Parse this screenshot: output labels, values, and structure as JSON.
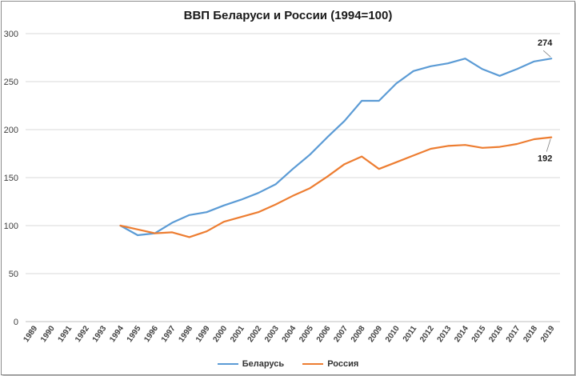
{
  "chart_data": {
    "type": "line",
    "title": "ВВП Беларуси и России (1994=100)",
    "xlabel": "",
    "ylabel": "",
    "ylim": [
      0,
      300
    ],
    "yticks": [
      0,
      50,
      100,
      150,
      200,
      250,
      300
    ],
    "grid": true,
    "legend": "bottom",
    "categories": [
      "1989",
      "1990",
      "1991",
      "1992",
      "1993",
      "1994",
      "1995",
      "1996",
      "1997",
      "1998",
      "1999",
      "2000",
      "2001",
      "2002",
      "2003",
      "2004",
      "2005",
      "2006",
      "2007",
      "2008",
      "2009",
      "2010",
      "2011",
      "2012",
      "2013",
      "2014",
      "2015",
      "2016",
      "2017",
      "2018",
      "2019"
    ],
    "series": [
      {
        "name": "Беларусь",
        "color": "#5b9bd5",
        "values": [
          null,
          null,
          null,
          null,
          null,
          100,
          90,
          92,
          103,
          111,
          114,
          121,
          127,
          134,
          143,
          159,
          174,
          192,
          209,
          230,
          230,
          248,
          261,
          266,
          269,
          274,
          263,
          256,
          263,
          271,
          274
        ]
      },
      {
        "name": "Россия",
        "color": "#ed7d31",
        "values": [
          null,
          null,
          null,
          null,
          null,
          100,
          96,
          92,
          93,
          88,
          94,
          104,
          109,
          114,
          122,
          131,
          139,
          151,
          164,
          172,
          159,
          166,
          173,
          180,
          183,
          184,
          181,
          182,
          185,
          190,
          192
        ]
      }
    ],
    "annotations": [
      {
        "series": "Беларусь",
        "category": "2019",
        "text": "274"
      },
      {
        "series": "Россия",
        "category": "2019",
        "text": "192"
      }
    ]
  }
}
